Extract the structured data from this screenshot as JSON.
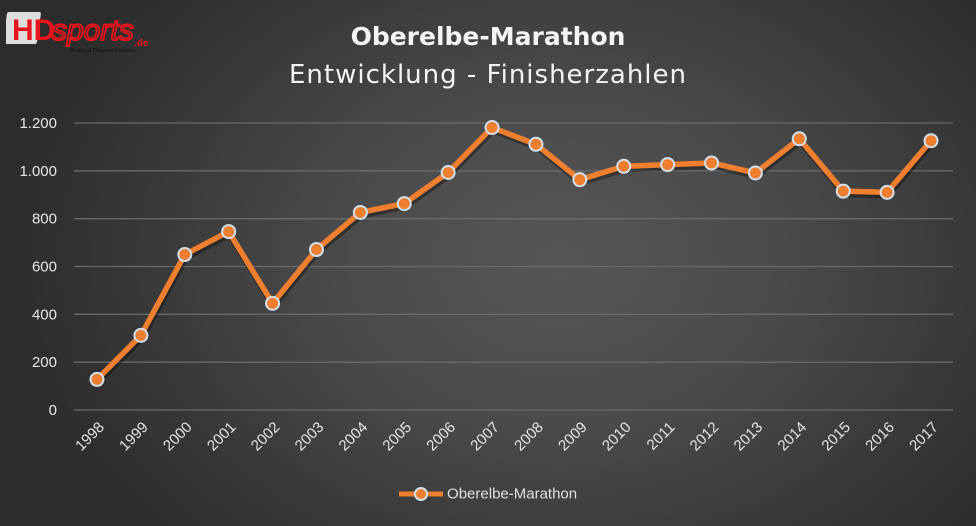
{
  "logo": {
    "text": "HDsports.de",
    "tagline": "Home of Distance Runners"
  },
  "colors": {
    "series": "#ef7f2e",
    "marker_border": "#cfe0ee",
    "grid": "#6a6a6a"
  },
  "chart_data": {
    "type": "line",
    "title": "Oberelbe-Marathon",
    "subtitle": "Entwicklung - Finisherzahlen",
    "categories": [
      "1998",
      "1999",
      "2000",
      "2001",
      "2002",
      "2003",
      "2004",
      "2005",
      "2006",
      "2007",
      "2008",
      "2009",
      "2010",
      "2011",
      "2012",
      "2013",
      "2014",
      "2015",
      "2016",
      "2017"
    ],
    "series": [
      {
        "name": "Oberelbe-Marathon",
        "values": [
          128,
          312,
          650,
          746,
          446,
          671,
          826,
          863,
          993,
          1181,
          1111,
          963,
          1019,
          1026,
          1033,
          991,
          1134,
          915,
          910,
          1126
        ]
      }
    ],
    "ylim": [
      0,
      1200
    ],
    "yticks": [
      0,
      200,
      400,
      600,
      800,
      1000,
      1200
    ],
    "ytick_labels": [
      "0",
      "200",
      "400",
      "600",
      "800",
      "1.000",
      "1.200"
    ],
    "grid": true,
    "legend": "bottom"
  }
}
